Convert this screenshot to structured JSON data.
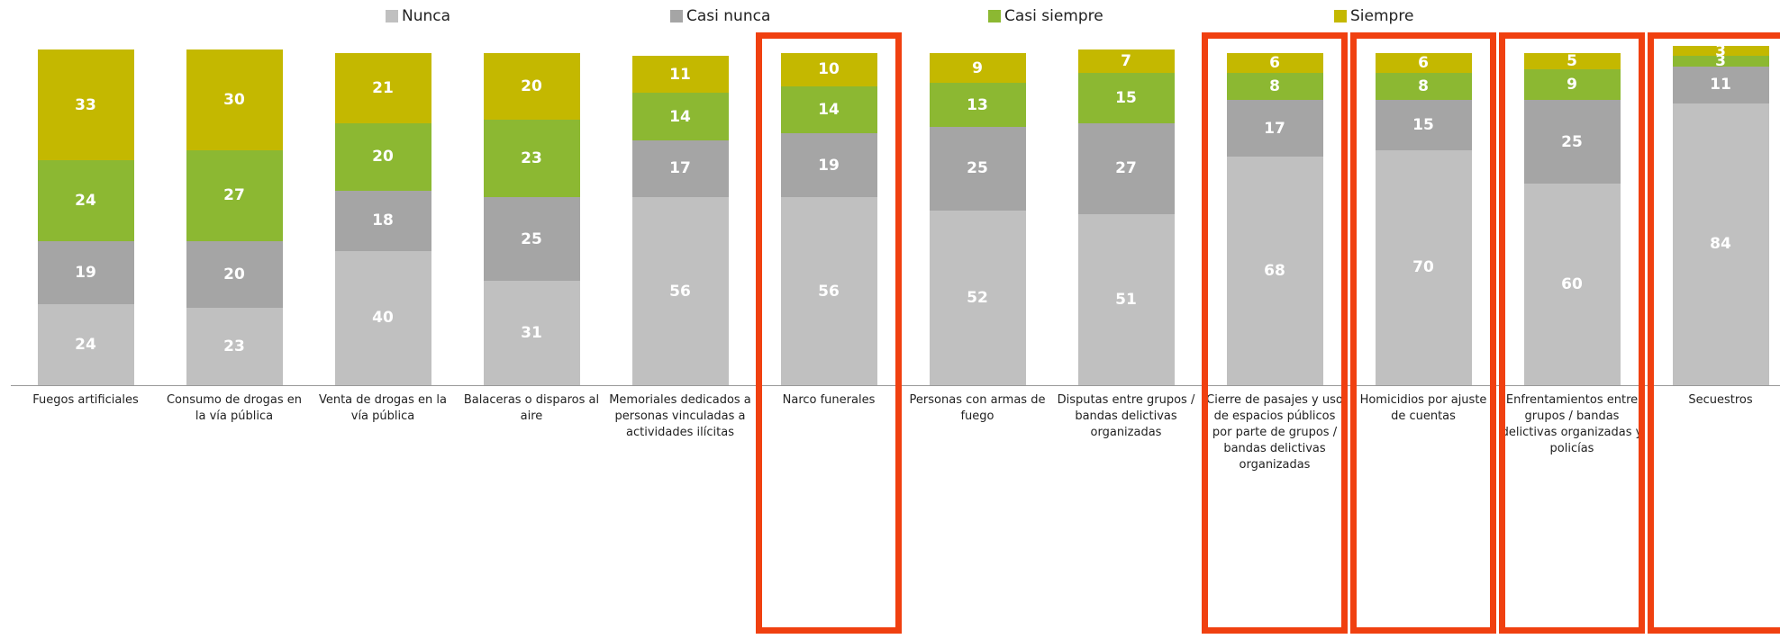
{
  "chart_data": {
    "type": "stacked_bar",
    "categories": [
      "Fuegos artificiales",
      "Consumo de drogas en la vía pública",
      "Venta de drogas en la vía pública",
      "Balaceras o disparos al aire",
      "Memoriales dedicados a personas vinculadas a actividades ilícitas",
      "Narco funerales",
      "Personas con armas de fuego",
      "Disputas entre grupos / bandas delictivas organizadas",
      "Cierre de pasajes y uso de espacios públicos por parte de grupos / bandas delictivas organizadas",
      "Homicidios por ajuste de cuentas",
      "Enfrentamientos entre grupos / bandas delictivas organizadas y policías",
      "Secuestros"
    ],
    "series": [
      {
        "name": "Nunca",
        "color": "#c0c0c0",
        "values": [
          24,
          23,
          40,
          31,
          56,
          56,
          52,
          51,
          68,
          70,
          60,
          84
        ]
      },
      {
        "name": "Casi nunca",
        "color": "#a5a5a5",
        "values": [
          19,
          20,
          18,
          25,
          17,
          19,
          25,
          27,
          17,
          15,
          25,
          11
        ]
      },
      {
        "name": "Casi siempre",
        "color": "#8cb832",
        "values": [
          24,
          27,
          20,
          23,
          14,
          14,
          13,
          15,
          8,
          8,
          9,
          3
        ]
      },
      {
        "name": "Siempre",
        "color": "#c4b800",
        "values": [
          33,
          30,
          21,
          20,
          11,
          10,
          9,
          7,
          6,
          6,
          5,
          3
        ]
      }
    ],
    "legend": "top"
  }
}
